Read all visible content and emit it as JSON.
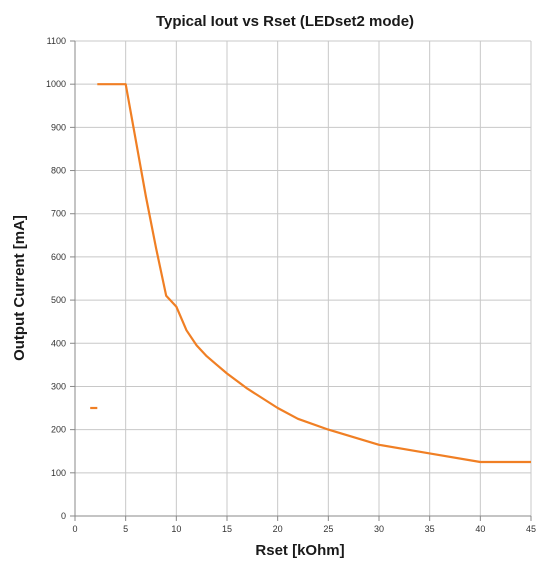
{
  "chart_data": {
    "type": "line",
    "title": "Typical Iout vs Rset (LEDset2 mode)",
    "xlabel": "Rset [kOhm]",
    "ylabel": "Output Current [mA]",
    "xlim": [
      0,
      45
    ],
    "ylim": [
      0,
      1100
    ],
    "xticks": [
      0,
      5,
      10,
      15,
      20,
      25,
      30,
      35,
      40,
      45
    ],
    "yticks": [
      0,
      100,
      200,
      300,
      400,
      500,
      600,
      700,
      800,
      900,
      1000,
      1100
    ],
    "grid": true,
    "legend": "none",
    "series": [
      {
        "color": "#f07f24",
        "segments": [
          {
            "x": [
              1.5,
              2.2
            ],
            "y": [
              250,
              250
            ]
          },
          {
            "x": [
              2.2,
              5,
              6,
              7,
              8,
              9,
              10,
              11,
              12,
              13,
              14,
              15,
              17,
              20,
              22,
              25,
              30,
              35,
              40,
              45
            ],
            "y": [
              1000,
              1000,
              870,
              740,
              620,
              510,
              485,
              430,
              395,
              370,
              350,
              330,
              295,
              250,
              225,
              200,
              165,
              145,
              125,
              125
            ]
          }
        ]
      }
    ]
  }
}
